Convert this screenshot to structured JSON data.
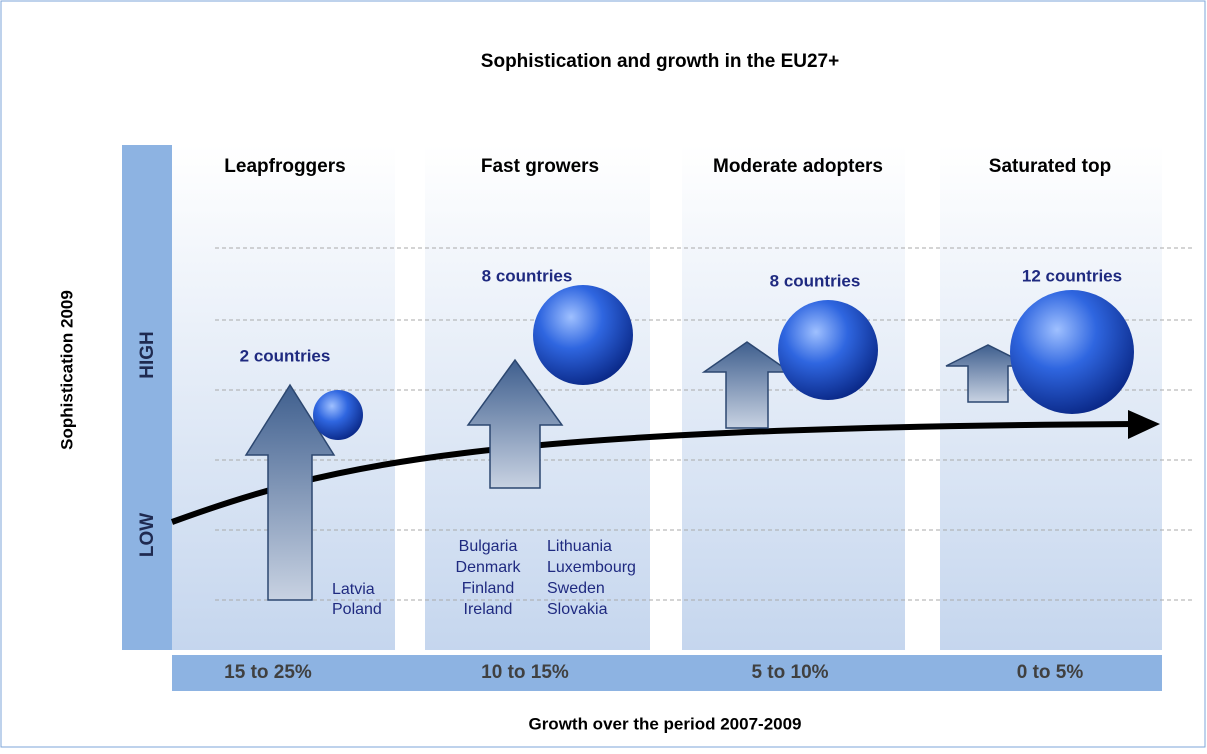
{
  "title": "Sophistication and growth in the EU27+",
  "y_axis": {
    "label": "Sophistication 2009",
    "high": "HIGH",
    "low": "LOW"
  },
  "x_axis": {
    "label": "Growth over the period 2007-2009"
  },
  "columns": [
    {
      "title": "Leapfroggers",
      "count": "2 countries",
      "growth": "15 to 25%",
      "countries": [
        "Latvia",
        "Poland"
      ]
    },
    {
      "title": "Fast growers",
      "count": "8 countries",
      "growth": "10 to 15%",
      "countries": [
        "Bulgaria",
        "Denmark",
        "Finland",
        "Ireland",
        "Lithuania",
        "Luxembourg",
        "Sweden",
        "Slovakia"
      ]
    },
    {
      "title": "Moderate adopters",
      "count": "8 countries",
      "growth": "5 to 10%",
      "countries": []
    },
    {
      "title": "Saturated  top",
      "count": "12 countries",
      "growth": "0 to 5%",
      "countries": []
    }
  ]
}
